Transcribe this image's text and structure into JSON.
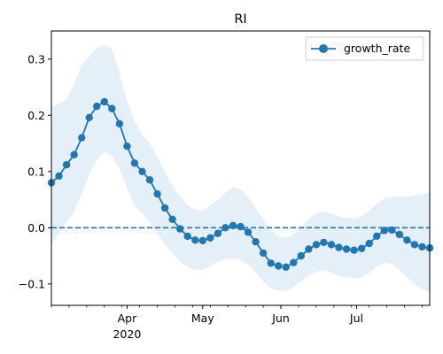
{
  "chart_data": {
    "type": "line",
    "title": "RI",
    "xlabel": "",
    "ylabel": "",
    "x_start": "2020-03-02",
    "x_end": "2020-07-30",
    "ylim": [
      -0.138,
      0.35
    ],
    "yticks": [
      -0.1,
      0.0,
      0.1,
      0.2,
      0.3
    ],
    "ytick_labels": [
      "−0.1",
      "0.0",
      "0.1",
      "0.2",
      "0.3"
    ],
    "xticks": [
      {
        "date": "2020-04-01",
        "label": "Apr",
        "sublabel": "2020"
      },
      {
        "date": "2020-05-01",
        "label": "May",
        "sublabel": ""
      },
      {
        "date": "2020-06-01",
        "label": "Jun",
        "sublabel": ""
      },
      {
        "date": "2020-07-01",
        "label": "Jul",
        "sublabel": ""
      }
    ],
    "reference_line": {
      "y": 0,
      "style": "dashed",
      "color": "#1f77b4"
    },
    "legend": {
      "position": "top-right",
      "entries": [
        "growth_rate"
      ]
    },
    "grid": false,
    "series": [
      {
        "name": "growth_rate",
        "color": "#1f77b4",
        "marker": "circle",
        "band_color": "#c6dbef",
        "points": [
          [
            "2020-03-02",
            0.08,
            -0.03,
            0.215
          ],
          [
            "2020-03-05",
            0.092,
            -0.01,
            0.22
          ],
          [
            "2020-03-08",
            0.112,
            0.01,
            0.228
          ],
          [
            "2020-03-11",
            0.13,
            0.03,
            0.255
          ],
          [
            "2020-03-14",
            0.16,
            0.06,
            0.29
          ],
          [
            "2020-03-17",
            0.196,
            0.095,
            0.305
          ],
          [
            "2020-03-20",
            0.216,
            0.12,
            0.32
          ],
          [
            "2020-03-23",
            0.224,
            0.135,
            0.326
          ],
          [
            "2020-03-26",
            0.212,
            0.128,
            0.318
          ],
          [
            "2020-03-29",
            0.185,
            0.105,
            0.275
          ],
          [
            "2020-04-01",
            0.145,
            0.07,
            0.225
          ],
          [
            "2020-04-04",
            0.115,
            0.04,
            0.19
          ],
          [
            "2020-04-07",
            0.1,
            0.025,
            0.165
          ],
          [
            "2020-04-10",
            0.085,
            0.01,
            0.15
          ],
          [
            "2020-04-13",
            0.06,
            -0.01,
            0.125
          ],
          [
            "2020-04-16",
            0.035,
            -0.03,
            0.1
          ],
          [
            "2020-04-19",
            0.015,
            -0.045,
            0.075
          ],
          [
            "2020-04-22",
            -0.002,
            -0.06,
            0.055
          ],
          [
            "2020-04-25",
            -0.015,
            -0.07,
            0.04
          ],
          [
            "2020-04-28",
            -0.022,
            -0.075,
            0.032
          ],
          [
            "2020-05-01",
            -0.023,
            -0.075,
            0.03
          ],
          [
            "2020-05-04",
            -0.018,
            -0.068,
            0.04
          ],
          [
            "2020-05-07",
            -0.01,
            -0.06,
            0.05
          ],
          [
            "2020-05-10",
            0.0,
            -0.055,
            0.062
          ],
          [
            "2020-05-13",
            0.004,
            -0.055,
            0.072
          ],
          [
            "2020-05-16",
            0.002,
            -0.058,
            0.068
          ],
          [
            "2020-05-19",
            -0.008,
            -0.065,
            0.055
          ],
          [
            "2020-05-22",
            -0.025,
            -0.08,
            0.035
          ],
          [
            "2020-05-25",
            -0.045,
            -0.095,
            0.015
          ],
          [
            "2020-05-28",
            -0.063,
            -0.108,
            -0.005
          ],
          [
            "2020-05-31",
            -0.068,
            -0.112,
            -0.015
          ],
          [
            "2020-06-03",
            -0.07,
            -0.112,
            -0.018
          ],
          [
            "2020-06-06",
            -0.062,
            -0.105,
            -0.012
          ],
          [
            "2020-06-09",
            -0.05,
            -0.095,
            0.0
          ],
          [
            "2020-06-12",
            -0.038,
            -0.085,
            0.015
          ],
          [
            "2020-06-15",
            -0.03,
            -0.078,
            0.025
          ],
          [
            "2020-06-18",
            -0.026,
            -0.075,
            0.03
          ],
          [
            "2020-06-21",
            -0.03,
            -0.08,
            0.025
          ],
          [
            "2020-06-24",
            -0.035,
            -0.085,
            0.02
          ],
          [
            "2020-06-27",
            -0.038,
            -0.088,
            0.018
          ],
          [
            "2020-06-30",
            -0.04,
            -0.09,
            0.016
          ],
          [
            "2020-07-03",
            -0.037,
            -0.088,
            0.02
          ],
          [
            "2020-07-06",
            -0.028,
            -0.08,
            0.03
          ],
          [
            "2020-07-09",
            -0.015,
            -0.07,
            0.043
          ],
          [
            "2020-07-12",
            -0.005,
            -0.062,
            0.052
          ],
          [
            "2020-07-15",
            -0.004,
            -0.065,
            0.055
          ],
          [
            "2020-07-18",
            -0.012,
            -0.075,
            0.055
          ],
          [
            "2020-07-21",
            -0.022,
            -0.088,
            0.055
          ],
          [
            "2020-07-24",
            -0.03,
            -0.1,
            0.058
          ],
          [
            "2020-07-27",
            -0.034,
            -0.11,
            0.06
          ],
          [
            "2020-07-30",
            -0.036,
            -0.115,
            0.062
          ]
        ]
      }
    ]
  }
}
